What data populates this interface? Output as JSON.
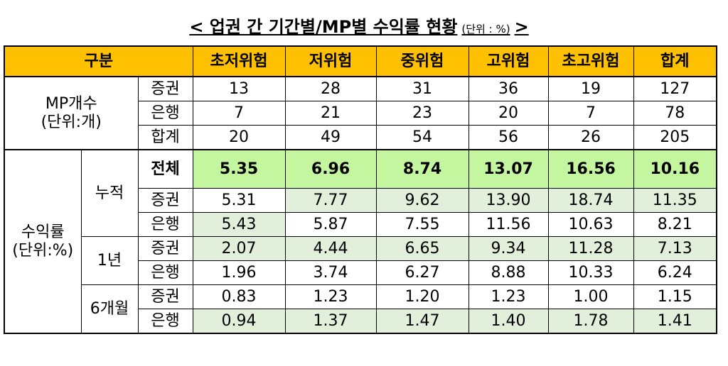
{
  "title": {
    "text": "< 업권 간 기간별/MP별 수익률 현황",
    "unit": "(단위 : %)",
    "end": ">"
  },
  "table": {
    "header_label": "구분",
    "columns": [
      "초저위험",
      "저위험",
      "중위험",
      "고위험",
      "초고위험",
      "합계"
    ],
    "mp": {
      "label": "MP개수",
      "unit": "(단위:개)",
      "rows": [
        {
          "label": "증권",
          "values": [
            "13",
            "28",
            "31",
            "36",
            "19",
            "127"
          ]
        },
        {
          "label": "은행",
          "values": [
            "7",
            "21",
            "23",
            "20",
            "7",
            "78"
          ]
        },
        {
          "label": "합계",
          "values": [
            "20",
            "49",
            "54",
            "56",
            "26",
            "205"
          ]
        }
      ]
    },
    "returns": {
      "label": "수익률",
      "unit": "(단위:%)",
      "groups": [
        {
          "label": "누적",
          "rows": [
            {
              "label": "전체",
              "values": [
                "5.35",
                "6.96",
                "8.74",
                "13.07",
                "16.56",
                "10.16"
              ]
            },
            {
              "label": "증권",
              "values": [
                "5.31",
                "7.77",
                "9.62",
                "13.90",
                "18.74",
                "11.35"
              ]
            },
            {
              "label": "은행",
              "values": [
                "5.43",
                "5.87",
                "7.55",
                "11.56",
                "10.63",
                "8.21"
              ]
            }
          ]
        },
        {
          "label": "1년",
          "rows": [
            {
              "label": "증권",
              "values": [
                "2.07",
                "4.44",
                "6.65",
                "9.34",
                "11.28",
                "7.13"
              ]
            },
            {
              "label": "은행",
              "values": [
                "1.96",
                "3.74",
                "6.27",
                "8.88",
                "10.33",
                "6.24"
              ]
            }
          ]
        },
        {
          "label": "6개월",
          "rows": [
            {
              "label": "증권",
              "values": [
                "0.83",
                "1.23",
                "1.20",
                "1.23",
                "1.00",
                "1.15"
              ]
            },
            {
              "label": "은행",
              "values": [
                "0.94",
                "1.37",
                "1.47",
                "1.40",
                "1.78",
                "1.41"
              ]
            }
          ]
        }
      ]
    }
  }
}
